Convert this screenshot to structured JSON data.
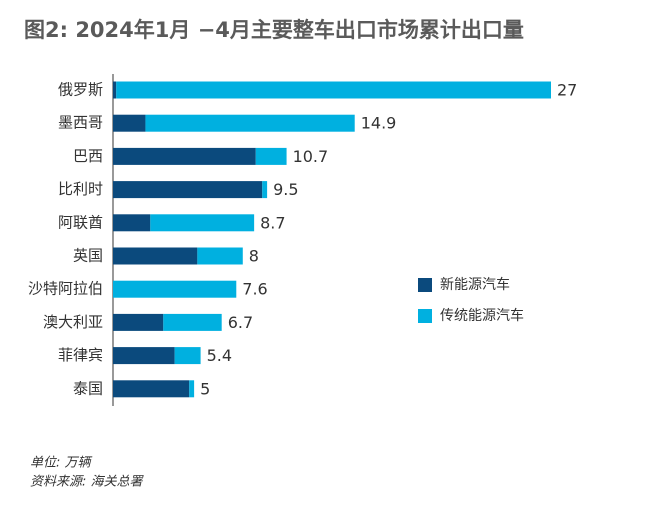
{
  "chart_data": {
    "type": "stacked-barh",
    "title": "图2: 2024年1月 −4月主要整车出口市场累计出口量",
    "categories": [
      "俄罗斯",
      "墨西哥",
      "巴西",
      "比利时",
      "阿联酋",
      "英国",
      "沙特阿拉伯",
      "澳大利亚",
      "菲律宾",
      "泰国"
    ],
    "series": [
      {
        "name": "新能源汽车",
        "color": "#0b4a7d",
        "values": [
          0.2,
          2.0,
          8.8,
          9.2,
          2.3,
          5.2,
          0,
          3.1,
          3.8,
          4.7
        ]
      },
      {
        "name": "传统能源汽车",
        "color": "#00b0e0",
        "values": [
          26.8,
          12.9,
          1.9,
          0.3,
          6.4,
          2.8,
          7.6,
          3.6,
          1.6,
          0.3
        ]
      }
    ],
    "totals": [
      27,
      14.9,
      10.7,
      9.5,
      8.7,
      8,
      7.6,
      6.7,
      5.4,
      5
    ],
    "xlim": [
      0,
      27
    ],
    "notes": [
      "单位: 万辆",
      "资料来源: 海关总署"
    ]
  }
}
